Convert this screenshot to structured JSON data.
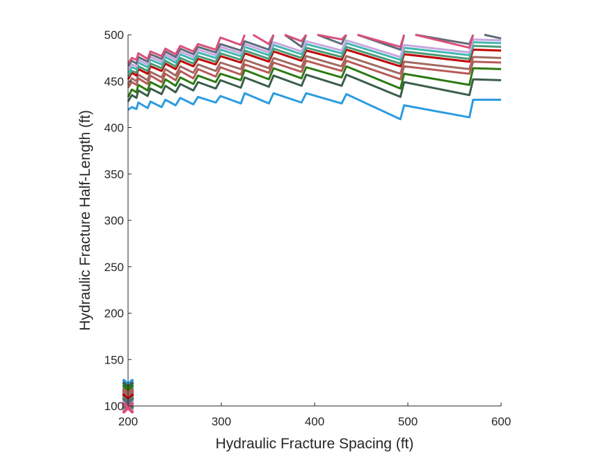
{
  "chart_data": {
    "type": "line",
    "title": "",
    "xlabel": "Hydraulic Fracture Spacing (ft)",
    "ylabel": "Hydraulic Fracture Half-Length (ft)",
    "xlim": [
      200,
      600
    ],
    "ylim": [
      100,
      500
    ],
    "xticks": [
      "200",
      "300",
      "400",
      "500",
      "600"
    ],
    "yticks": [
      "100",
      "150",
      "200",
      "250",
      "300",
      "350",
      "400",
      "450",
      "500"
    ],
    "grid": false,
    "legend": "none",
    "series": [
      {
        "color": "#2b9be0",
        "marker_y": 123,
        "points": [
          [
            200,
            419
          ],
          [
            204,
            422
          ],
          [
            209,
            420
          ],
          [
            211,
            427
          ],
          [
            221,
            421
          ],
          [
            224,
            428
          ],
          [
            236,
            422
          ],
          [
            240,
            430
          ],
          [
            251,
            424
          ],
          [
            256,
            432
          ],
          [
            270,
            425
          ],
          [
            275,
            433
          ],
          [
            294,
            427
          ],
          [
            299,
            434
          ],
          [
            321,
            426
          ],
          [
            325,
            437
          ],
          [
            351,
            426
          ],
          [
            356,
            437
          ],
          [
            386,
            427
          ],
          [
            391,
            437
          ],
          [
            429,
            426
          ],
          [
            434,
            436
          ],
          [
            492,
            409
          ],
          [
            496,
            424
          ],
          [
            566,
            411
          ],
          [
            570,
            430
          ],
          [
            600,
            430
          ]
        ]
      },
      {
        "color": "#3a5e4a",
        "marker_y": 120,
        "points": [
          [
            200,
            428
          ],
          [
            204,
            435
          ],
          [
            209,
            432
          ],
          [
            211,
            440
          ],
          [
            221,
            434
          ],
          [
            224,
            442
          ],
          [
            236,
            436
          ],
          [
            240,
            445
          ],
          [
            251,
            438
          ],
          [
            256,
            447
          ],
          [
            270,
            440
          ],
          [
            275,
            449
          ],
          [
            294,
            442
          ],
          [
            299,
            451
          ],
          [
            321,
            443
          ],
          [
            325,
            454
          ],
          [
            351,
            444
          ],
          [
            356,
            456
          ],
          [
            386,
            445
          ],
          [
            391,
            457
          ],
          [
            429,
            445
          ],
          [
            434,
            457
          ],
          [
            492,
            433
          ],
          [
            496,
            449
          ],
          [
            566,
            435
          ],
          [
            570,
            452
          ],
          [
            600,
            451
          ]
        ]
      },
      {
        "color": "#2c7a12",
        "marker_y": 117,
        "points": [
          [
            200,
            433
          ],
          [
            204,
            441
          ],
          [
            209,
            438
          ],
          [
            211,
            446
          ],
          [
            221,
            440
          ],
          [
            224,
            449
          ],
          [
            236,
            443
          ],
          [
            240,
            452
          ],
          [
            251,
            445
          ],
          [
            256,
            454
          ],
          [
            270,
            447
          ],
          [
            275,
            456
          ],
          [
            294,
            449
          ],
          [
            299,
            458
          ],
          [
            321,
            451
          ],
          [
            325,
            462
          ],
          [
            351,
            452
          ],
          [
            356,
            464
          ],
          [
            386,
            453
          ],
          [
            391,
            465
          ],
          [
            429,
            454
          ],
          [
            434,
            466
          ],
          [
            492,
            442
          ],
          [
            496,
            458
          ],
          [
            566,
            446
          ],
          [
            570,
            464
          ],
          [
            600,
            463
          ]
        ]
      },
      {
        "color": "#b65b58",
        "marker_y": 113,
        "points": [
          [
            200,
            443
          ],
          [
            204,
            449
          ],
          [
            209,
            446
          ],
          [
            211,
            453
          ],
          [
            221,
            447
          ],
          [
            224,
            456
          ],
          [
            236,
            449
          ],
          [
            240,
            458
          ],
          [
            251,
            451
          ],
          [
            256,
            461
          ],
          [
            270,
            453
          ],
          [
            275,
            463
          ],
          [
            294,
            455
          ],
          [
            299,
            465
          ],
          [
            321,
            457
          ],
          [
            325,
            468
          ],
          [
            351,
            459
          ],
          [
            356,
            470
          ],
          [
            386,
            460
          ],
          [
            391,
            472
          ],
          [
            429,
            461
          ],
          [
            434,
            472
          ],
          [
            492,
            452
          ],
          [
            496,
            466
          ],
          [
            566,
            458
          ],
          [
            570,
            471
          ],
          [
            600,
            470
          ]
        ]
      },
      {
        "color": "#a06a62",
        "marker_y": 110,
        "points": [
          [
            200,
            446
          ],
          [
            204,
            453
          ],
          [
            209,
            450
          ],
          [
            211,
            457
          ],
          [
            221,
            451
          ],
          [
            224,
            460
          ],
          [
            236,
            454
          ],
          [
            240,
            463
          ],
          [
            251,
            456
          ],
          [
            256,
            466
          ],
          [
            270,
            459
          ],
          [
            275,
            468
          ],
          [
            294,
            461
          ],
          [
            299,
            470
          ],
          [
            321,
            463
          ],
          [
            325,
            473
          ],
          [
            351,
            464
          ],
          [
            356,
            475
          ],
          [
            386,
            465
          ],
          [
            391,
            477
          ],
          [
            429,
            466
          ],
          [
            434,
            477
          ],
          [
            492,
            458
          ],
          [
            496,
            471
          ],
          [
            566,
            463
          ],
          [
            570,
            476
          ],
          [
            600,
            475
          ]
        ]
      },
      {
        "color": "#c00000",
        "marker_y": 107,
        "points": [
          [
            200,
            452
          ],
          [
            204,
            459
          ],
          [
            209,
            456
          ],
          [
            211,
            463
          ],
          [
            221,
            458
          ],
          [
            224,
            466
          ],
          [
            236,
            461
          ],
          [
            240,
            469
          ],
          [
            251,
            463
          ],
          [
            256,
            472
          ],
          [
            270,
            466
          ],
          [
            275,
            474
          ],
          [
            294,
            468
          ],
          [
            299,
            477
          ],
          [
            321,
            470
          ],
          [
            325,
            480
          ],
          [
            351,
            471
          ],
          [
            356,
            482
          ],
          [
            386,
            472
          ],
          [
            391,
            483
          ],
          [
            429,
            473
          ],
          [
            434,
            484
          ],
          [
            492,
            466
          ],
          [
            496,
            479
          ],
          [
            566,
            471
          ],
          [
            570,
            484
          ],
          [
            600,
            483
          ]
        ]
      },
      {
        "color": "#4a9a78",
        "marker_y": 104,
        "points": [
          [
            200,
            455
          ],
          [
            204,
            461
          ],
          [
            209,
            459
          ],
          [
            211,
            466
          ],
          [
            221,
            461
          ],
          [
            224,
            469
          ],
          [
            236,
            464
          ],
          [
            240,
            472
          ],
          [
            251,
            466
          ],
          [
            256,
            475
          ],
          [
            270,
            469
          ],
          [
            275,
            477
          ],
          [
            294,
            471
          ],
          [
            299,
            480
          ],
          [
            321,
            473
          ],
          [
            325,
            483
          ],
          [
            351,
            474
          ],
          [
            356,
            485
          ],
          [
            386,
            475
          ],
          [
            391,
            486
          ],
          [
            429,
            476
          ],
          [
            434,
            487
          ],
          [
            492,
            469
          ],
          [
            496,
            482
          ],
          [
            566,
            474
          ],
          [
            570,
            488
          ],
          [
            600,
            487
          ]
        ]
      },
      {
        "color": "#40b8b0",
        "marker_y": 102,
        "points": [
          [
            200,
            459
          ],
          [
            204,
            465
          ],
          [
            209,
            463
          ],
          [
            211,
            470
          ],
          [
            221,
            465
          ],
          [
            224,
            473
          ],
          [
            236,
            468
          ],
          [
            240,
            476
          ],
          [
            251,
            470
          ],
          [
            256,
            479
          ],
          [
            270,
            473
          ],
          [
            275,
            481
          ],
          [
            294,
            475
          ],
          [
            299,
            484
          ],
          [
            321,
            477
          ],
          [
            325,
            487
          ],
          [
            351,
            478
          ],
          [
            356,
            489
          ],
          [
            386,
            479
          ],
          [
            391,
            490
          ],
          [
            429,
            480
          ],
          [
            434,
            491
          ],
          [
            492,
            473
          ],
          [
            496,
            486
          ],
          [
            566,
            478
          ],
          [
            570,
            492
          ],
          [
            600,
            491
          ]
        ]
      },
      {
        "color": "#c8a6e0",
        "marker_y": 100,
        "points": [
          [
            200,
            462
          ],
          [
            204,
            468
          ],
          [
            209,
            466
          ],
          [
            211,
            473
          ],
          [
            221,
            468
          ],
          [
            224,
            476
          ],
          [
            236,
            471
          ],
          [
            240,
            479
          ],
          [
            251,
            473
          ],
          [
            256,
            482
          ],
          [
            270,
            476
          ],
          [
            275,
            484
          ],
          [
            294,
            478
          ],
          [
            299,
            487
          ],
          [
            321,
            480
          ],
          [
            325,
            490
          ],
          [
            351,
            481
          ],
          [
            356,
            492
          ],
          [
            386,
            482
          ],
          [
            391,
            493
          ],
          [
            429,
            483
          ],
          [
            434,
            494
          ],
          [
            492,
            476
          ],
          [
            496,
            489
          ],
          [
            566,
            481
          ],
          [
            570,
            495
          ],
          [
            600,
            494
          ]
        ]
      },
      {
        "color": "#5f6b78",
        "marker_y": 103,
        "points": [
          [
            200,
            466
          ],
          [
            204,
            472
          ],
          [
            209,
            469
          ],
          [
            211,
            476
          ],
          [
            221,
            471
          ],
          [
            224,
            479
          ],
          [
            236,
            474
          ],
          [
            240,
            482
          ],
          [
            251,
            476
          ],
          [
            256,
            485
          ],
          [
            270,
            479
          ],
          [
            275,
            487
          ],
          [
            294,
            481
          ],
          [
            299,
            490
          ],
          [
            321,
            483
          ],
          [
            325,
            493
          ],
          [
            351,
            484
          ],
          [
            356,
            500
          ],
          null,
          [
            368,
            500
          ],
          [
            386,
            487
          ],
          [
            391,
            500
          ],
          null,
          [
            403,
            500
          ],
          [
            429,
            490
          ],
          [
            434,
            500
          ],
          null,
          [
            446,
            500
          ],
          [
            492,
            484
          ],
          [
            496,
            500
          ],
          null,
          [
            508,
            500
          ],
          [
            566,
            490
          ],
          [
            570,
            500
          ],
          null,
          [
            582,
            500
          ],
          [
            600,
            496
          ]
        ]
      },
      {
        "color": "#d9507a",
        "marker_y": 98,
        "points": [
          [
            200,
            469
          ],
          [
            204,
            475
          ],
          [
            209,
            473
          ],
          [
            211,
            480
          ],
          [
            221,
            474
          ],
          [
            224,
            482
          ],
          [
            236,
            477
          ],
          [
            240,
            485
          ],
          [
            251,
            479
          ],
          [
            256,
            488
          ],
          [
            270,
            482
          ],
          [
            275,
            490
          ],
          [
            294,
            484
          ],
          [
            299,
            497
          ],
          [
            321,
            489
          ],
          [
            325,
            500
          ],
          null,
          [
            334,
            500
          ],
          [
            351,
            490
          ],
          [
            356,
            500
          ],
          null,
          [
            368,
            500
          ],
          [
            386,
            493
          ],
          [
            391,
            500
          ],
          null,
          [
            403,
            500
          ],
          [
            429,
            495
          ],
          [
            434,
            500
          ],
          null,
          [
            446,
            500
          ],
          [
            492,
            487
          ],
          [
            496,
            500
          ],
          null,
          [
            508,
            500
          ],
          [
            566,
            486
          ],
          [
            570,
            500
          ]
        ]
      }
    ]
  }
}
